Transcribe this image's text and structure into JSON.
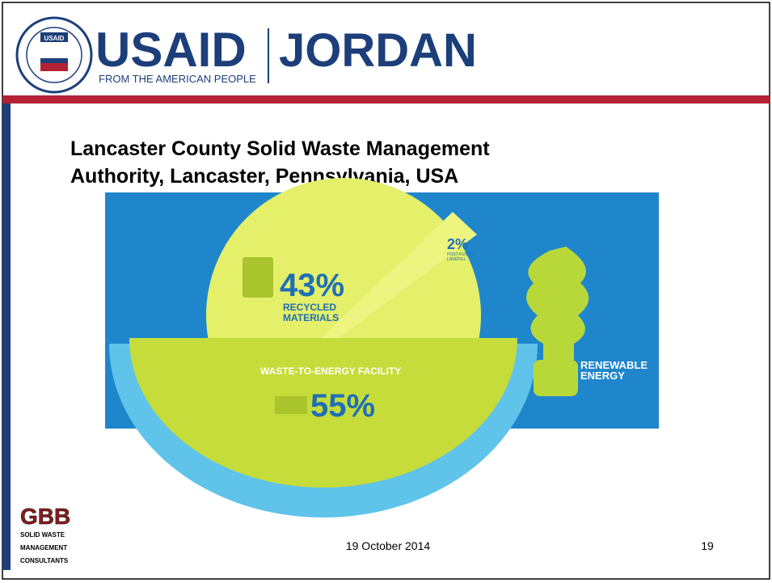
{
  "header": {
    "seal": "USAID",
    "brand": "USAID",
    "tagline": "FROM THE AMERICAN PEOPLE",
    "country": "JORDAN"
  },
  "title": [
    "Lancaster County Solid Waste Management",
    "Authority, Lancaster, Pennsylvania, USA"
  ],
  "infographic": {
    "recycled": {
      "value": "43%",
      "label": [
        "RECYCLED",
        "MATERIALS"
      ]
    },
    "landfill": {
      "value": "2%",
      "label": [
        "POST-FUSION",
        "LANDFILL"
      ]
    },
    "energy_facility": {
      "label": "WASTE-TO-ENERGY FACILITY",
      "value": "55%"
    },
    "renewable": [
      "RENEWABLE",
      "ENERGY"
    ]
  },
  "footer": {
    "logo": "GBB",
    "logo_lines": [
      "SOLID WASTE",
      "MANAGEMENT",
      "CONSULTANTS"
    ],
    "date": "19 October 2014",
    "page": "19"
  }
}
